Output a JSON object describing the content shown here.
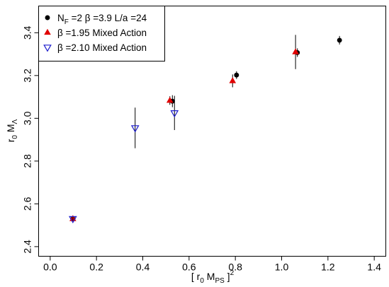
{
  "chart_data": {
    "type": "scatter",
    "xlabel": {
      "prefix": "[ r",
      "r_sub": "0",
      "mid": " M",
      "m_sub": "PS",
      "suffix": " ]",
      "sup": "2"
    },
    "ylabel": {
      "prefix": "r",
      "r_sub": "0",
      "mid": " M",
      "m_sub": "Λ"
    },
    "xlim": [
      -0.05,
      1.45
    ],
    "ylim": [
      2.355,
      3.525
    ],
    "xticks": [
      "0.0",
      "0.2",
      "0.4",
      "0.6",
      "0.8",
      "1.0",
      "1.2",
      "1.4"
    ],
    "yticks": [
      "2.4",
      "2.6",
      "2.8",
      "3.0",
      "3.2",
      "3.4"
    ],
    "legend": {
      "placement": "top-left",
      "entries": [
        {
          "key": "nf2",
          "marker": "circle",
          "color": "#000000",
          "parts": [
            "N",
            "F",
            " =2 β =3.9 L/a =24"
          ]
        },
        {
          "key": "b195",
          "marker": "triangle-up",
          "color": "#e00000",
          "parts": [
            "β =1.95 Mixed Action"
          ]
        },
        {
          "key": "b210",
          "marker": "triangle-down-open",
          "color": "#1c1ccc",
          "parts": [
            "β =2.10 Mixed Action"
          ]
        }
      ]
    },
    "series": [
      {
        "key": "nf2",
        "marker": "circle",
        "color": "#000000",
        "points": [
          {
            "x": 0.098,
            "y": 2.53,
            "err": 0.01
          },
          {
            "x": 0.528,
            "y": 3.08,
            "err": 0.028
          },
          {
            "x": 0.805,
            "y": 3.202,
            "err": 0.018
          },
          {
            "x": 1.068,
            "y": 3.307,
            "err": 0.02
          },
          {
            "x": 1.25,
            "y": 3.365,
            "err": 0.02
          }
        ]
      },
      {
        "key": "b195",
        "marker": "triangle-up",
        "color": "#e00000",
        "points": [
          {
            "x": 0.098,
            "y": 2.53,
            "err": 0.008
          },
          {
            "x": 0.517,
            "y": 3.083,
            "err": 0.02
          },
          {
            "x": 0.788,
            "y": 3.175,
            "err": 0.03
          },
          {
            "x": 1.06,
            "y": 3.31,
            "err": 0.08
          }
        ]
      },
      {
        "key": "b210",
        "marker": "triangle-down-open",
        "color": "#1c1ccc",
        "points": [
          {
            "x": 0.098,
            "y": 2.53,
            "err": 0.008
          },
          {
            "x": 0.367,
            "y": 2.955,
            "err": 0.095
          },
          {
            "x": 0.537,
            "y": 3.025,
            "err": 0.08
          }
        ]
      }
    ]
  }
}
